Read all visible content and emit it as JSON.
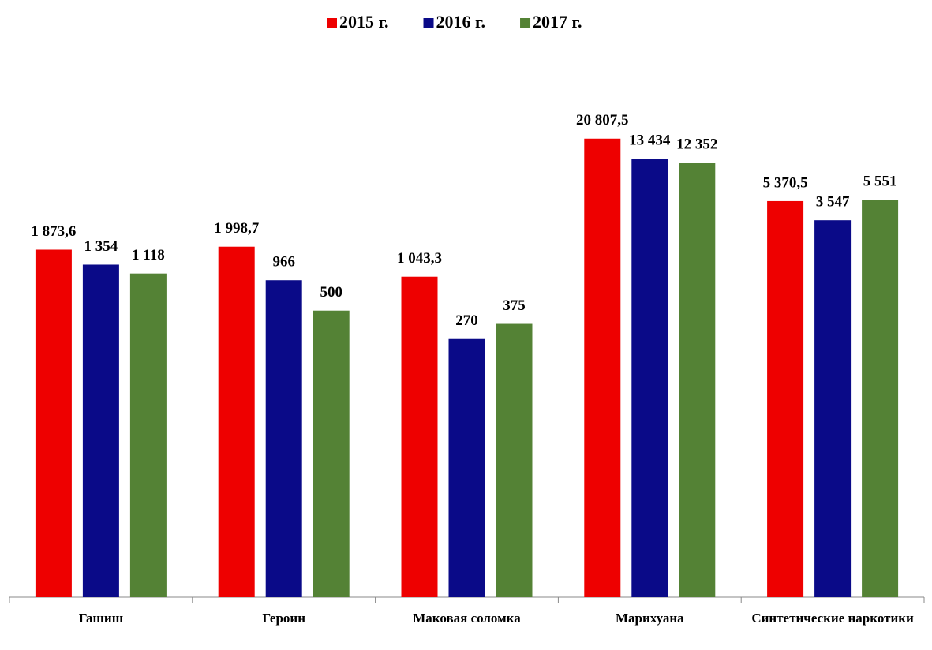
{
  "chart_data": {
    "type": "bar",
    "categories": [
      "Гашиш",
      "Героин",
      "Маковая соломка",
      "Марихуана",
      "Синтетические наркотики"
    ],
    "series": [
      {
        "name": "2015 г.",
        "color": "#ee0000",
        "values": [
          1873.6,
          1998.7,
          1043.3,
          20807.5,
          5370.5
        ],
        "value_labels": [
          "1 873,6",
          "1 998,7",
          "1 043,3",
          "20 807,5",
          "5 370,5"
        ]
      },
      {
        "name": "2016 г.",
        "color": "#0a0a88",
        "values": [
          1354,
          966,
          270,
          13434,
          3547
        ],
        "value_labels": [
          "1 354",
          "966",
          "270",
          "13 434",
          "3 547"
        ]
      },
      {
        "name": "2017 г.",
        "color": "#548235",
        "values": [
          1118,
          500,
          375,
          12352,
          5551
        ],
        "value_labels": [
          "1 118",
          "500",
          "375",
          "12 352",
          "5 551"
        ]
      }
    ],
    "ylim": [
      1,
      100000
    ],
    "log_scale": true,
    "grid": false,
    "legend": "top"
  }
}
